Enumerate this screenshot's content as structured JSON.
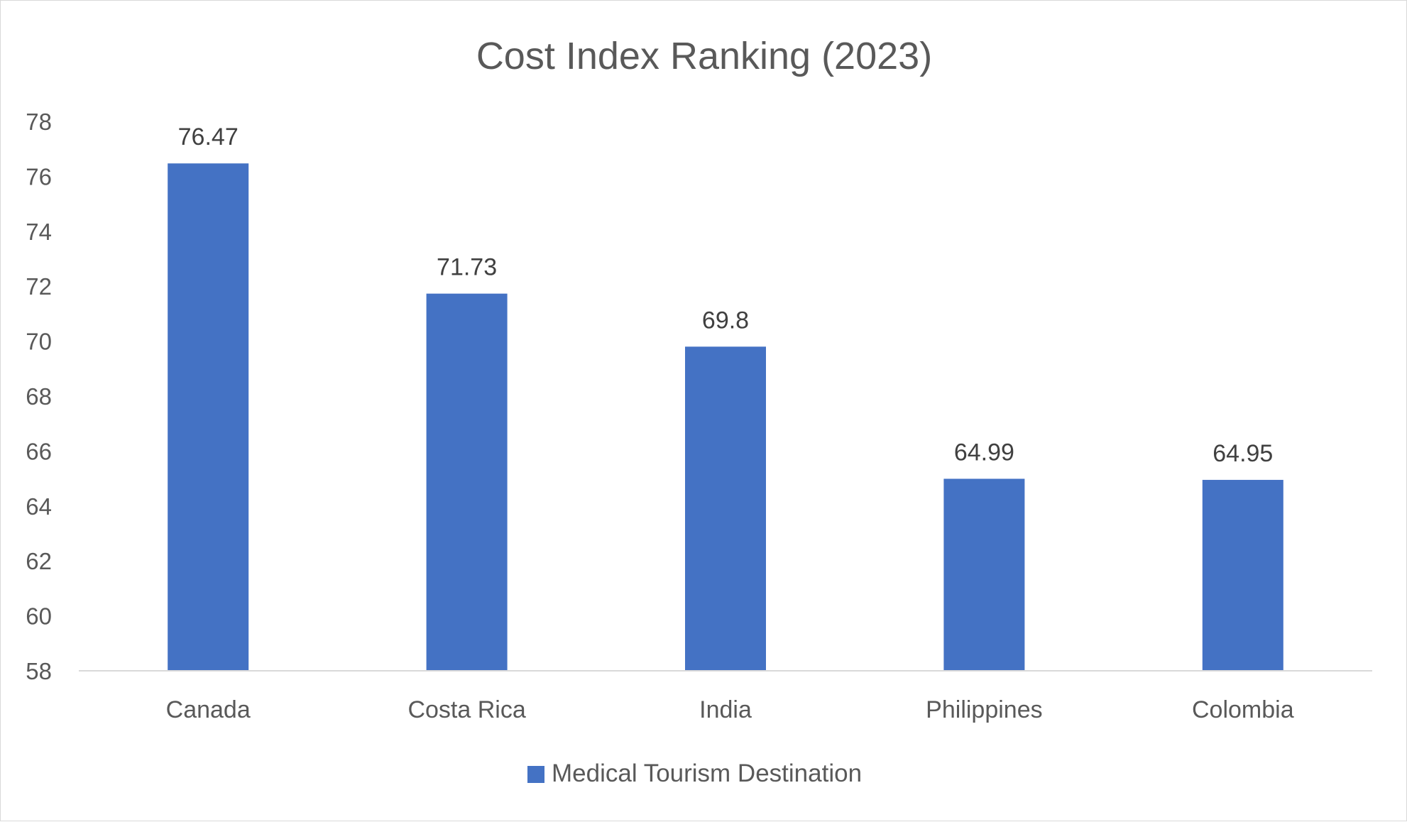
{
  "chart_data": {
    "type": "bar",
    "title": "Cost Index Ranking (2023)",
    "xlabel": "",
    "ylabel": "",
    "categories": [
      "Canada",
      "Costa Rica",
      "India",
      "Philippines",
      "Colombia"
    ],
    "series": [
      {
        "name": "Medical Tourism Destination",
        "values": [
          76.47,
          71.73,
          69.8,
          64.99,
          64.95
        ],
        "data_labels": [
          "76.47",
          "71.73",
          "69.8",
          "64.99",
          "64.95"
        ],
        "color": "#4472C4"
      }
    ],
    "ylim": [
      58,
      78
    ],
    "y_ticks": [
      "58",
      "60",
      "62",
      "64",
      "66",
      "68",
      "70",
      "72",
      "74",
      "76",
      "78"
    ],
    "grid": false,
    "legend": "bottom"
  }
}
